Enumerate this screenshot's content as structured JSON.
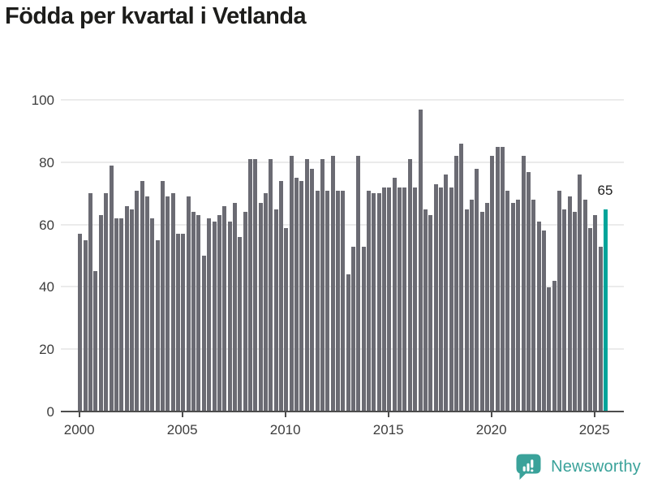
{
  "title": "Födda per kvartal i Vetlanda",
  "chart_data": {
    "type": "bar",
    "title": "Födda per kvartal i Vetlanda",
    "start_period": "2000-Q1",
    "end_period": "2025-Q3",
    "frequency": "quarterly",
    "values": [
      57,
      55,
      70,
      45,
      63,
      70,
      79,
      62,
      62,
      66,
      65,
      71,
      74,
      69,
      62,
      55,
      74,
      69,
      70,
      57,
      57,
      69,
      64,
      63,
      50,
      62,
      61,
      63,
      66,
      61,
      67,
      56,
      64,
      81,
      81,
      67,
      70,
      81,
      65,
      74,
      59,
      82,
      75,
      74,
      81,
      78,
      71,
      81,
      71,
      82,
      71,
      71,
      44,
      53,
      82,
      53,
      71,
      70,
      70,
      72,
      72,
      75,
      72,
      72,
      81,
      72,
      97,
      65,
      63,
      73,
      72,
      76,
      72,
      82,
      86,
      65,
      68,
      78,
      64,
      67,
      82,
      85,
      85,
      71,
      67,
      68,
      82,
      77,
      68,
      61,
      58,
      40,
      42,
      71,
      65,
      69,
      64,
      76,
      68,
      59,
      63,
      53,
      65
    ],
    "highlight": {
      "index": 102,
      "period": "2025-Q3",
      "value": 65,
      "label": "65",
      "color": "#00a49a"
    },
    "bar_color": "#6b6b73",
    "x_ticks": [
      "2000",
      "2005",
      "2010",
      "2015",
      "2020",
      "2025"
    ],
    "y_ticks": [
      0,
      20,
      40,
      60,
      80,
      100
    ],
    "ylim": [
      0,
      100
    ],
    "grid": true,
    "legend": false
  },
  "logo": {
    "text": "Newsworthy",
    "icon": "bar-chart-speech-bubble-icon",
    "color": "#3aa29a"
  },
  "colors": {
    "bar": "#6b6b73",
    "highlight": "#00a49a",
    "title_text": "#1d1d1b",
    "axis_text": "#3d3d3d",
    "gridline": "#ebebeb",
    "axis_line": "#4d4d4d",
    "background": "#ffffff"
  }
}
